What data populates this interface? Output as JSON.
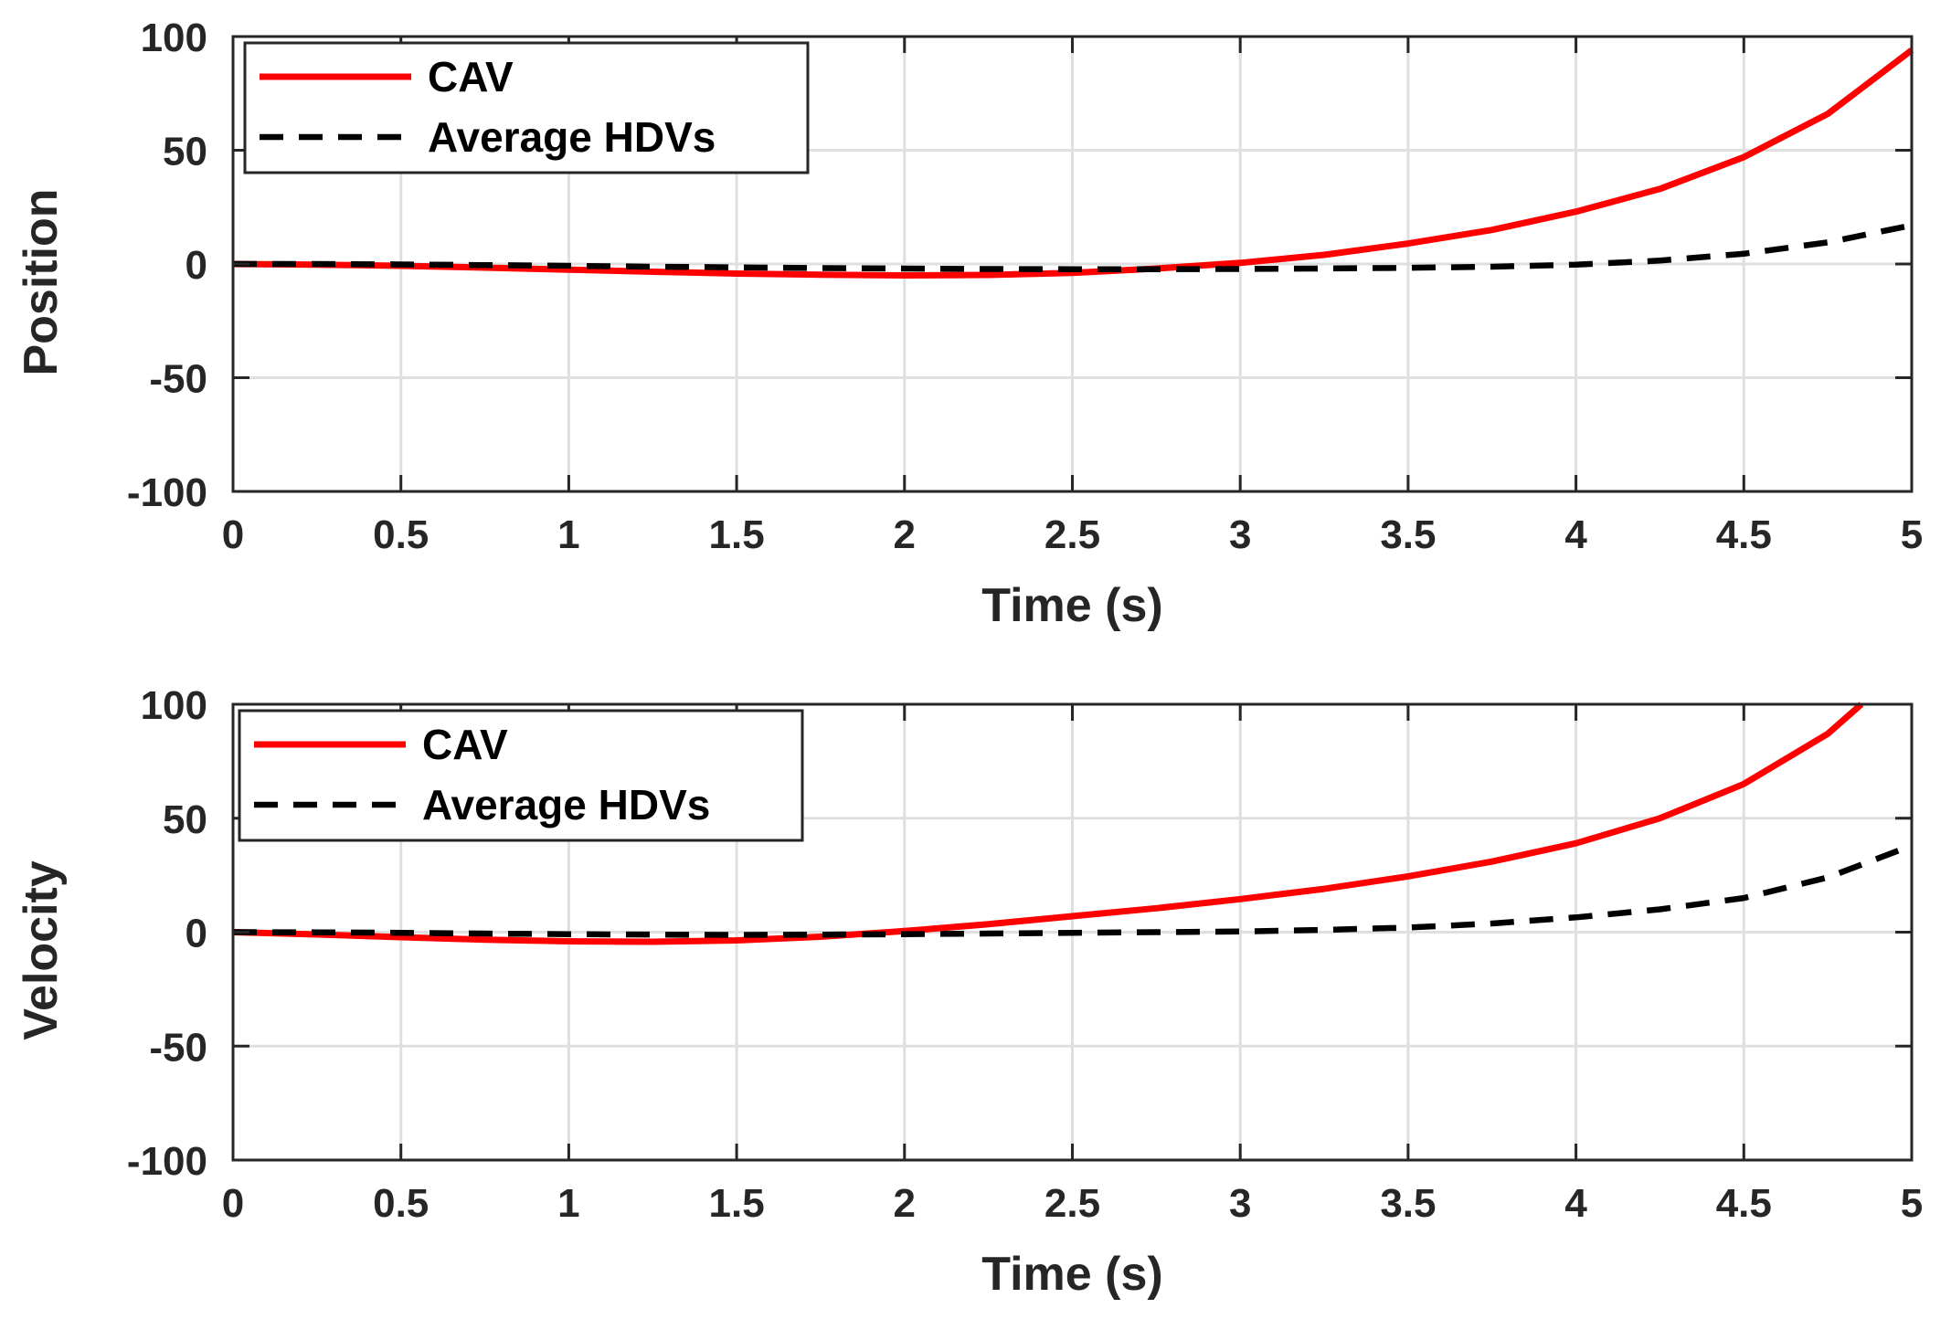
{
  "chart_data": [
    {
      "type": "line",
      "title": "",
      "xlabel": "Time (s)",
      "ylabel": "Position",
      "xlim": [
        0,
        5
      ],
      "ylim": [
        -100,
        100
      ],
      "xticks": [
        0,
        0.5,
        1,
        1.5,
        2,
        2.5,
        3,
        3.5,
        4,
        4.5,
        5
      ],
      "xtick_labels": [
        "0",
        "0.5",
        "1",
        "1.5",
        "2",
        "2.5",
        "3",
        "3.5",
        "4",
        "4.5",
        "5"
      ],
      "yticks": [
        100,
        50,
        0,
        -50,
        -100
      ],
      "ytick_labels": [
        "100",
        "50",
        "0",
        "-50",
        "-100"
      ],
      "grid": true,
      "legend": "top-left",
      "series": [
        {
          "name": "CAV",
          "color": "#ff0000",
          "style": "solid",
          "x": [
            0,
            0.25,
            0.5,
            0.75,
            1,
            1.25,
            1.5,
            1.75,
            2,
            2.25,
            2.5,
            2.75,
            3,
            3.25,
            3.5,
            3.75,
            4,
            4.25,
            4.5,
            4.75,
            5
          ],
          "y": [
            0,
            -0.3,
            -0.8,
            -1.6,
            -2.5,
            -3.4,
            -4.2,
            -4.7,
            -5,
            -4.8,
            -3.9,
            -2,
            0.5,
            4,
            9,
            15,
            23,
            33,
            47,
            66,
            94
          ]
        },
        {
          "name": "Average HDVs",
          "color": "#000000",
          "style": "dashed",
          "x": [
            0,
            0.25,
            0.5,
            0.75,
            1,
            1.25,
            1.5,
            1.75,
            2,
            2.25,
            2.5,
            2.75,
            3,
            3.25,
            3.5,
            3.75,
            4,
            4.25,
            4.5,
            4.75,
            5
          ],
          "y": [
            0,
            0,
            -0.2,
            -0.5,
            -0.8,
            -1.2,
            -1.5,
            -1.8,
            -2,
            -2.2,
            -2.3,
            -2.3,
            -2.2,
            -2,
            -1.7,
            -1.2,
            -0.3,
            1.5,
            4.5,
            9.5,
            17
          ]
        }
      ]
    },
    {
      "type": "line",
      "title": "",
      "xlabel": "Time (s)",
      "ylabel": "Velocity",
      "xlim": [
        0,
        5
      ],
      "ylim": [
        -100,
        100
      ],
      "xticks": [
        0,
        0.5,
        1,
        1.5,
        2,
        2.5,
        3,
        3.5,
        4,
        4.5,
        5
      ],
      "xtick_labels": [
        "0",
        "0.5",
        "1",
        "1.5",
        "2",
        "2.5",
        "3",
        "3.5",
        "4",
        "4.5",
        "5"
      ],
      "yticks": [
        100,
        50,
        0,
        -50,
        -100
      ],
      "ytick_labels": [
        "100",
        "50",
        "0",
        "-50",
        "-100"
      ],
      "grid": true,
      "legend": "top-left",
      "series": [
        {
          "name": "CAV",
          "color": "#ff0000",
          "style": "solid",
          "x": [
            0,
            0.25,
            0.5,
            0.75,
            1,
            1.25,
            1.5,
            1.75,
            2,
            2.25,
            2.5,
            2.75,
            3,
            3.25,
            3.5,
            3.75,
            4,
            4.25,
            4.5,
            4.75,
            4.85
          ],
          "y": [
            0,
            -1,
            -2.2,
            -3.3,
            -4,
            -4.2,
            -3.6,
            -2,
            0.5,
            3.5,
            7,
            10.5,
            14.5,
            19,
            24.5,
            31,
            39,
            50,
            65,
            87,
            100
          ]
        },
        {
          "name": "Average HDVs",
          "color": "#000000",
          "style": "dashed",
          "x": [
            0,
            0.25,
            0.5,
            0.75,
            1,
            1.25,
            1.5,
            1.75,
            2,
            2.25,
            2.5,
            2.75,
            3,
            3.25,
            3.5,
            3.75,
            4,
            4.25,
            4.5,
            4.75,
            5
          ],
          "y": [
            0,
            -0.1,
            -0.3,
            -0.6,
            -0.9,
            -1.1,
            -1.2,
            -1.1,
            -0.9,
            -0.6,
            -0.3,
            0,
            0.3,
            1,
            2,
            3.8,
            6.5,
            10,
            15,
            24,
            38
          ]
        }
      ]
    }
  ]
}
